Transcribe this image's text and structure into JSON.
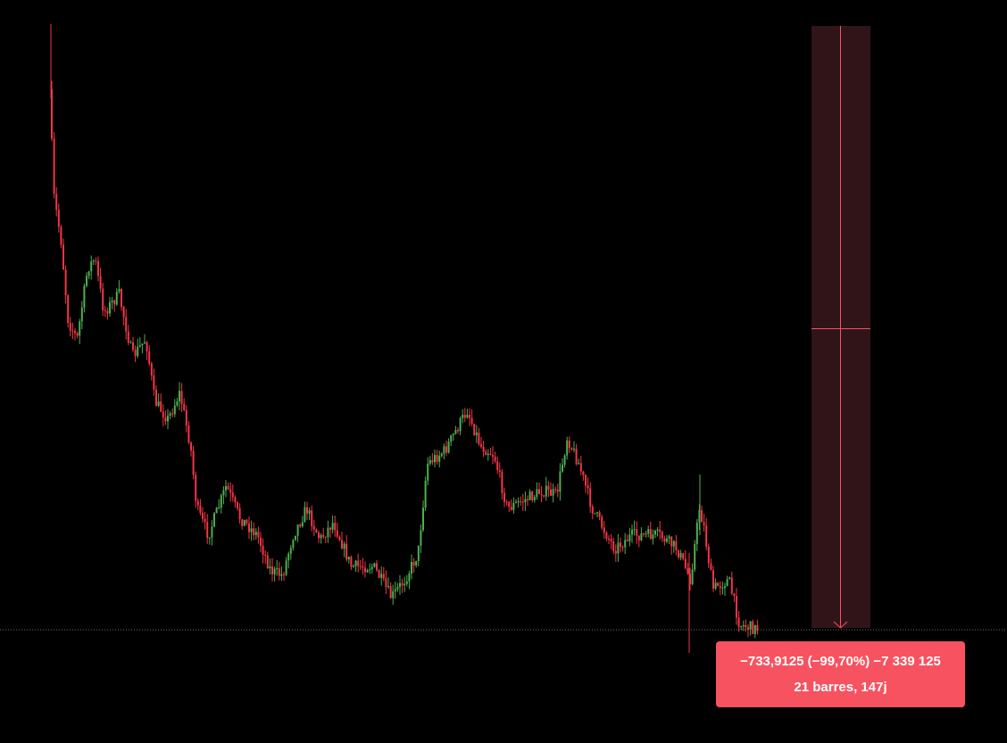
{
  "measurement": {
    "line1": "−733,9125 (−99,70%) −7 339 125",
    "line2": "21 barres, 147j"
  }
}
